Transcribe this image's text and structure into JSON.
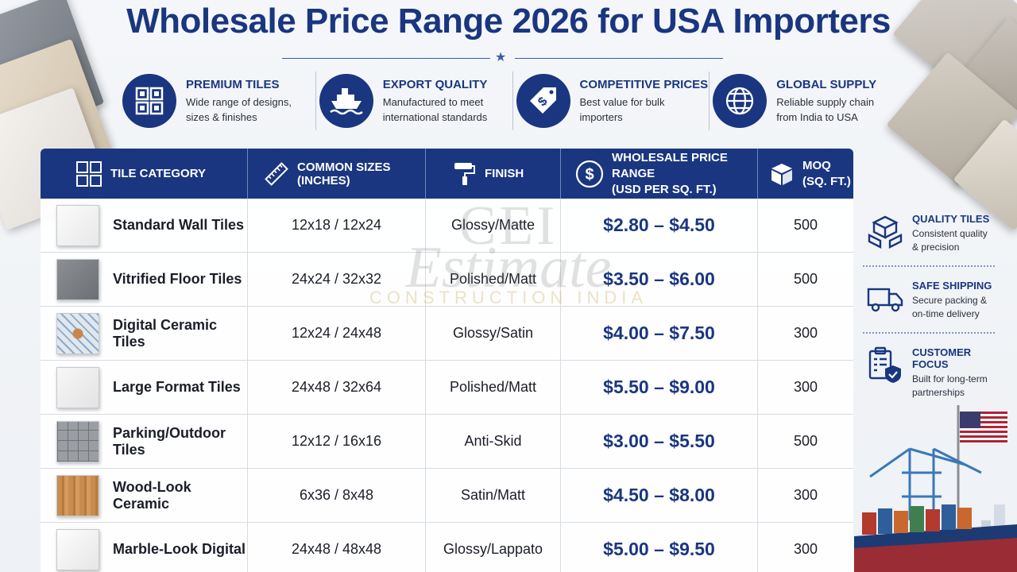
{
  "title": "Wholesale Price Range 2026 for USA Importers",
  "colors": {
    "brand": "#1a3680",
    "text": "#1b1e27"
  },
  "features": [
    {
      "icon": "tiles-grid-icon",
      "title": "PREMIUM TILES",
      "line1": "Wide range of designs,",
      "line2": "sizes & finishes"
    },
    {
      "icon": "cargo-ship-icon",
      "title": "EXPORT QUALITY",
      "line1": "Manufactured to meet",
      "line2": "international standards"
    },
    {
      "icon": "price-tag-icon",
      "title": "COMPETITIVE PRICES",
      "line1": "Best value for bulk",
      "line2": "importers"
    },
    {
      "icon": "globe-icon",
      "title": "GLOBAL SUPPLY",
      "line1": "Reliable supply chain",
      "line2": "from India to USA"
    }
  ],
  "table": {
    "headers": {
      "category": "TILE CATEGORY",
      "sizes": "COMMON SIZES (INCHES)",
      "finish": "FINISH",
      "price_line1": "WHOLESALE PRICE RANGE",
      "price_line2": "(USD PER SQ. FT.)",
      "moq_line1": "MOQ",
      "moq_line2": "(SQ. FT.)"
    },
    "rows": [
      {
        "category": "Standard Wall Tiles",
        "sizes": "12x18 / 12x24",
        "finish": "Glossy/Matte",
        "price": "$2.80 – $4.50",
        "moq": "500",
        "swatch": "white"
      },
      {
        "category": "Vitrified Floor Tiles",
        "sizes": "24x24 / 32x32",
        "finish": "Polished/Matt",
        "price": "$3.50 – $6.00",
        "moq": "500",
        "swatch": "gray"
      },
      {
        "category": "Digital Ceramic Tiles",
        "sizes": "12x24 / 24x48",
        "finish": "Glossy/Satin",
        "price": "$4.00 – $7.50",
        "moq": "300",
        "swatch": "pattern"
      },
      {
        "category": "Large Format Tiles",
        "sizes": "24x48 / 32x64",
        "finish": "Polished/Matt",
        "price": "$5.50 – $9.00",
        "moq": "300",
        "swatch": "large"
      },
      {
        "category": "Parking/Outdoor Tiles",
        "sizes": "12x12 / 16x16",
        "finish": "Anti-Skid",
        "price": "$3.00 – $5.50",
        "moq": "500",
        "swatch": "parking"
      },
      {
        "category": "Wood-Look Ceramic",
        "sizes": "6x36 / 8x48",
        "finish": "Satin/Matt",
        "price": "$4.50 – $8.00",
        "moq": "300",
        "swatch": "wood"
      },
      {
        "category": "Marble-Look Digital",
        "sizes": "24x48 / 48x48",
        "finish": "Glossy/Lappato",
        "price": "$5.00 – $9.50",
        "moq": "300",
        "swatch": "marble"
      }
    ]
  },
  "watermark": {
    "line1": "CEI",
    "line2": "Estimate",
    "line3": "CONSTRUCTION INDIA"
  },
  "side": [
    {
      "icon": "quality-boxes-icon",
      "title": "QUALITY TILES",
      "line1": "Consistent quality",
      "line2": "& precision"
    },
    {
      "icon": "truck-icon",
      "title": "SAFE SHIPPING",
      "line1": "Secure packing &",
      "line2": "on-time delivery"
    },
    {
      "icon": "clipboard-shield-icon",
      "title": "CUSTOMER FOCUS",
      "line1": "Built for long-term",
      "line2": "partnerships"
    }
  ]
}
